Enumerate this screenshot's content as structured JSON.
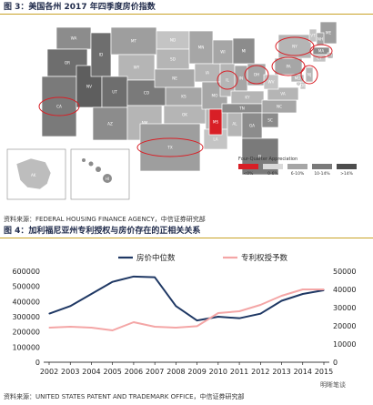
{
  "figure3": {
    "title": "图 3：美国各州 2017 年四季度房价指数",
    "source": "资料来源：FEDERAL HOUSING FINANCE AGENCY，中信证券研究部",
    "legend_title": "Four-Quarter Appreciation",
    "legend_items": [
      {
        "label": "<0%",
        "color": "#d81f26"
      },
      {
        "label": "0-6%",
        "color": "#d9d9d9"
      },
      {
        "label": "6-10%",
        "color": "#a6a6a6"
      },
      {
        "label": "10-14%",
        "color": "#7a7a7a"
      },
      {
        "label": ">14%",
        "color": "#4d4d4d"
      }
    ],
    "states": [
      "WA",
      "OR",
      "CA",
      "NV",
      "ID",
      "MT",
      "WY",
      "UT",
      "AZ",
      "CO",
      "NM",
      "ND",
      "SD",
      "NE",
      "KS",
      "OK",
      "TX",
      "MN",
      "IA",
      "MO",
      "AR",
      "LA",
      "WI",
      "IL",
      "MS",
      "AL",
      "MI",
      "IN",
      "KY",
      "TN",
      "OH",
      "GA",
      "FL",
      "SC",
      "NC",
      "VA",
      "WV",
      "PA",
      "NY",
      "VT",
      "ME",
      "NH",
      "MA",
      "RI",
      "CT",
      "NJ",
      "DE",
      "MD",
      "DC",
      "AK",
      "HI"
    ],
    "circled_states": [
      "CA",
      "TX",
      "IL",
      "OH",
      "PA",
      "NY",
      "NJ",
      "MA"
    ]
  },
  "figure4": {
    "title": "图 4：加利福尼亚州专利授权与房价存在的正相关关系",
    "source": "资料来源：UNITED STATES PATENT AND TRADEMARK OFFICE，中信证券研究部",
    "watermark": "明晰笔谈"
  },
  "chart_data": {
    "type": "line",
    "categories": [
      "2002",
      "2003",
      "2004",
      "2005",
      "2006",
      "2007",
      "2008",
      "2009",
      "2010",
      "2011",
      "2012",
      "2013",
      "2014",
      "2015"
    ],
    "series": [
      {
        "name": "房价中位数",
        "axis": "left",
        "color": "#1f3864",
        "values": [
          320000,
          370000,
          450000,
          530000,
          565000,
          560000,
          370000,
          275000,
          300000,
          290000,
          320000,
          405000,
          450000,
          475000
        ]
      },
      {
        "name": "专利权授予数",
        "axis": "right",
        "color": "#f4a6a6",
        "values": [
          19000,
          19500,
          19000,
          17500,
          22000,
          19500,
          19000,
          19800,
          27000,
          28000,
          31500,
          36500,
          40000,
          40000
        ]
      }
    ],
    "y_left": {
      "ticks": [
        "0",
        "100000",
        "200000",
        "300000",
        "400000",
        "500000",
        "600000"
      ],
      "lim": [
        0,
        600000
      ]
    },
    "y_right": {
      "ticks": [
        "0",
        "10000",
        "20000",
        "30000",
        "40000",
        "50000"
      ],
      "lim": [
        0,
        50000
      ]
    },
    "legend_placement": "top-center",
    "grid": false
  }
}
